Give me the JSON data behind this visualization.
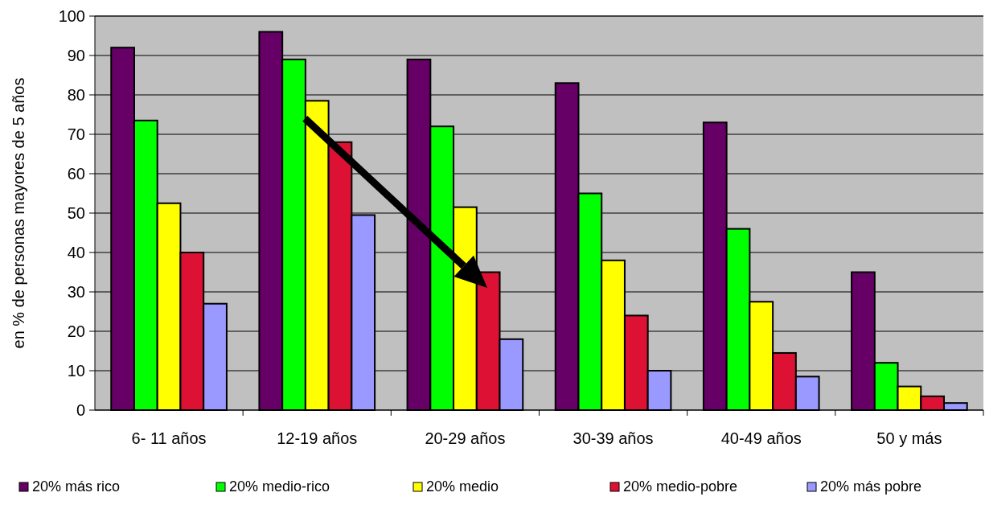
{
  "chart_data": {
    "type": "bar",
    "ylabel": "en % de personas mayores de 5 años",
    "categories": [
      "6- 11 años",
      "12-19 años",
      "20-29 años",
      "30-39 años",
      "40-49 años",
      "50 y más"
    ],
    "series": [
      {
        "name": "20% más rico",
        "color": "#660066",
        "values": [
          92,
          96,
          89,
          83,
          73,
          35
        ]
      },
      {
        "name": "20% medio-rico",
        "color": "#00ff00",
        "values": [
          73.5,
          89,
          72,
          55,
          46,
          12
        ]
      },
      {
        "name": "20% medio",
        "color": "#ffff00",
        "values": [
          52.5,
          78.5,
          51.5,
          38,
          27.5,
          6
        ]
      },
      {
        "name": "20% medio-pobre",
        "color": "#dd1133",
        "values": [
          40,
          68,
          35,
          24,
          14.5,
          3.5
        ]
      },
      {
        "name": "20% más pobre",
        "color": "#9999ff",
        "values": [
          27,
          49.5,
          18,
          10,
          8.5,
          1.8
        ]
      }
    ],
    "ylim": [
      0,
      100
    ],
    "yticks": [
      0,
      10,
      20,
      30,
      40,
      50,
      60,
      70,
      80,
      90,
      100
    ],
    "grid": "y",
    "legend": "bottom"
  }
}
